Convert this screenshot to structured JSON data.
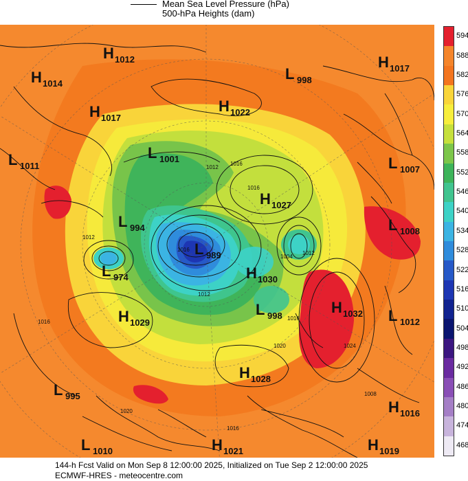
{
  "legend": {
    "line1": "Mean Sea Level Pressure (hPa)",
    "line2": "500-hPa Heights (dam)"
  },
  "colorbar": {
    "labels": [
      "594",
      "588",
      "582",
      "576",
      "570",
      "564",
      "558",
      "552",
      "546",
      "540",
      "534",
      "528",
      "522",
      "516",
      "510",
      "504",
      "498",
      "492",
      "486",
      "480",
      "474",
      "468"
    ],
    "colors": [
      "#e4202e",
      "#f5852b",
      "#f3751f",
      "#f9d53a",
      "#f7ee3c",
      "#c6e03c",
      "#7cc64a",
      "#3db45a",
      "#40c48f",
      "#3dd2c6",
      "#3bb4e3",
      "#2f8cdc",
      "#2659c8",
      "#1d36b3",
      "#112390",
      "#0a1570",
      "#3b1680",
      "#6a2ba0",
      "#8a4fb6",
      "#a57fc6",
      "#c8b4dc",
      "#eeeaf4"
    ]
  },
  "pressure_centers": [
    {
      "type": "H",
      "value": "1012"
    },
    {
      "type": "H",
      "value": "1014"
    },
    {
      "type": "H",
      "value": "1017"
    },
    {
      "type": "L",
      "value": "1011"
    },
    {
      "type": "L",
      "value": "1001"
    },
    {
      "type": "H",
      "value": "1022"
    },
    {
      "type": "L",
      "value": "998"
    },
    {
      "type": "H",
      "value": "1017"
    },
    {
      "type": "L",
      "value": "1007"
    },
    {
      "type": "H",
      "value": "1027"
    },
    {
      "type": "L",
      "value": "994"
    },
    {
      "type": "L",
      "value": "989"
    },
    {
      "type": "L",
      "value": "1008"
    },
    {
      "type": "L",
      "value": "974"
    },
    {
      "type": "H",
      "value": "1030"
    },
    {
      "type": "H",
      "value": "1029"
    },
    {
      "type": "L",
      "value": "998"
    },
    {
      "type": "H",
      "value": "1032"
    },
    {
      "type": "L",
      "value": "1012"
    },
    {
      "type": "L",
      "value": "995"
    },
    {
      "type": "H",
      "value": "1028"
    },
    {
      "type": "H",
      "value": "1016"
    },
    {
      "type": "L",
      "value": "1010"
    },
    {
      "type": "H",
      "value": "1021"
    },
    {
      "type": "H",
      "value": "1019"
    }
  ],
  "contour_labels": [
    "1016",
    "1012",
    "1012",
    "1016",
    "1016",
    "1012",
    "1004",
    "1012",
    "1016",
    "1020",
    "1024",
    "1016",
    "1008",
    "1016",
    "1020",
    "1016",
    "1012"
  ],
  "footer": {
    "line1": "144-h Fcst Valid on Mon Sep  8 12:00:00 2025, Initialized on Tue Sep  2 12:00:00 2025",
    "line2": "ECMWF-HRES  - meteocentre.com"
  }
}
